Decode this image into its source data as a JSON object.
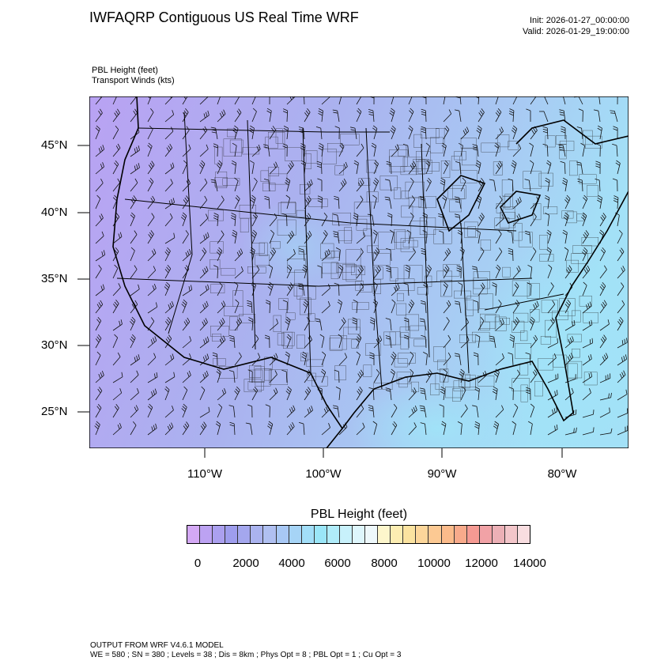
{
  "header": {
    "title": "IWFAQRP Contiguous US Real Time WRF",
    "init": "Init: 2026-01-27_00:00:00",
    "valid": "Valid: 2026-01-29_19:00:00",
    "field_line1": "PBL Height   (feet)",
    "field_line2": "Transport Winds   (kts)"
  },
  "map": {
    "lat_labels": [
      "45°N",
      "40°N",
      "35°N",
      "30°N",
      "25°N"
    ],
    "lon_labels": [
      "110°W",
      "100°W",
      "90°W",
      "80°W"
    ],
    "field_colors": {
      "cool": "#b8a4f2",
      "mid": "#a9c6f0",
      "cyan": "#9fe6f6"
    }
  },
  "colorbar": {
    "title": "PBL Height  (feet)",
    "labels": [
      "0",
      "2000",
      "4000",
      "6000",
      "8000",
      "10000",
      "12000",
      "14000"
    ],
    "colors": [
      "#d4a9f5",
      "#bca2f2",
      "#aba0ef",
      "#9e9ded",
      "#a4a7ee",
      "#aab3ef",
      "#b0c0f1",
      "#a8c8f5",
      "#a6d4f6",
      "#a2def8",
      "#9ae6f8",
      "#b0ecfa",
      "#c8f1fb",
      "#def6fc",
      "#eef8fb",
      "#fdf6cc",
      "#fcedb2",
      "#fbe3a0",
      "#fcd69a",
      "#fcc993",
      "#fbbb8b",
      "#f8aa8b",
      "#f59a93",
      "#f1a2a6",
      "#ecb0b6",
      "#f3c6ca",
      "#f8dde0"
    ]
  },
  "footer": {
    "line1": "OUTPUT FROM WRF V4.6.1 MODEL",
    "line2": "WE = 580 ; SN = 380 ; Levels = 38 ; Dis = 8km ; Phys Opt = 8 ; PBL Opt = 1 ; Cu Opt = 3"
  }
}
